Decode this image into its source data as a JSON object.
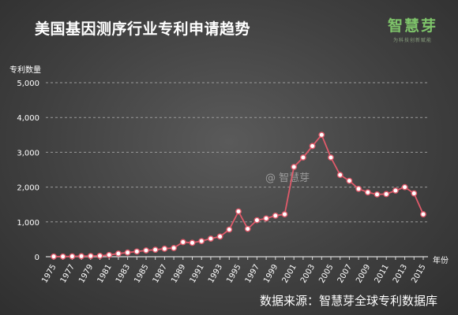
{
  "header": {
    "title": "美国基因测序行业专利申请趋势",
    "logo_text": "智慧芽",
    "logo_tagline": "为科技创新赋能"
  },
  "watermark": "@ 智慧芽",
  "footer": {
    "source": "数据来源：智慧芽全球专利数据库"
  },
  "colors": {
    "line": "#e05a6a",
    "marker_fill": "#ffffff",
    "grid": "#9a9a9a",
    "text": "#ffffff",
    "brand": "#7ec46a"
  },
  "chart_data": {
    "type": "line",
    "title": "美国基因测序行业专利申请趋势",
    "ylabel": "专利数量",
    "xlabel": "年份",
    "ylim": [
      0,
      5000
    ],
    "yticks": [
      0,
      1000,
      2000,
      3000,
      4000,
      5000
    ],
    "ytick_labels": [
      "0",
      "1,000",
      "2,000",
      "3,000",
      "4,000",
      "5,000"
    ],
    "xtick_labels": [
      "1975",
      "1977",
      "1979",
      "1981",
      "1983",
      "1985",
      "1987",
      "1989",
      "1991",
      "1993",
      "1995",
      "1997",
      "1999",
      "2001",
      "2003",
      "2005",
      "2007",
      "2009",
      "2011",
      "2013",
      "2015"
    ],
    "grid": "horizontal dashed",
    "x": [
      1975,
      1976,
      1977,
      1978,
      1979,
      1980,
      1981,
      1982,
      1983,
      1984,
      1985,
      1986,
      1987,
      1988,
      1989,
      1990,
      1991,
      1992,
      1993,
      1994,
      1995,
      1996,
      1997,
      1998,
      1999,
      2000,
      2001,
      2002,
      2003,
      2004,
      2005,
      2006,
      2007,
      2008,
      2009,
      2010,
      2011,
      2012,
      2013,
      2014,
      2015
    ],
    "series": [
      {
        "values": [
          5,
          5,
          10,
          15,
          20,
          25,
          50,
          90,
          120,
          150,
          180,
          200,
          230,
          250,
          420,
          400,
          450,
          520,
          580,
          780,
          1300,
          800,
          1050,
          1100,
          1180,
          1220,
          2580,
          2850,
          3180,
          3500,
          2850,
          2350,
          2180,
          1950,
          1850,
          1790,
          1800,
          1900,
          2000,
          1820,
          1220
        ]
      }
    ]
  }
}
